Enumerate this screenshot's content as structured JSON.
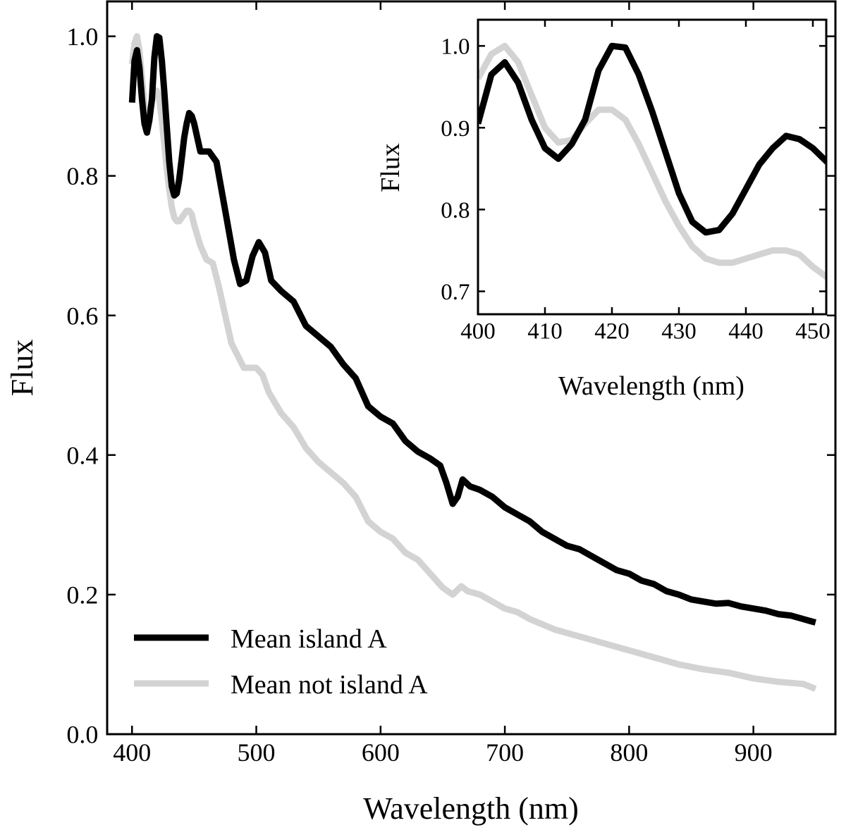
{
  "chart_data": [
    {
      "type": "line",
      "xlabel": "Wavelength (nm)",
      "ylabel": "Flux",
      "xlim": [
        380,
        966
      ],
      "ylim": [
        0,
        1.05
      ],
      "xticks": [
        400,
        500,
        600,
        700,
        800,
        900
      ],
      "yticks": [
        0.0,
        0.2,
        0.4,
        0.6,
        0.8,
        1.0
      ],
      "xtick_labels": [
        "400",
        "500",
        "600",
        "700",
        "800",
        "900"
      ],
      "ytick_labels": [
        "0.0",
        "0.2",
        "0.4",
        "0.6",
        "0.8",
        "1.0"
      ],
      "grid": false,
      "legend_position": "bottom-left",
      "series": [
        {
          "name": "Mean island A",
          "color": "#000000",
          "x": [
            400,
            402,
            404,
            406,
            408,
            410,
            412,
            414,
            416,
            418,
            420,
            422,
            424,
            426,
            428,
            430,
            432,
            434,
            436,
            438,
            440,
            442,
            444,
            446,
            448,
            450,
            455,
            462,
            468,
            475,
            482,
            487,
            492,
            497,
            502,
            507,
            512,
            520,
            530,
            540,
            550,
            560,
            570,
            580,
            590,
            600,
            610,
            620,
            630,
            640,
            648,
            653,
            658,
            662,
            666,
            672,
            680,
            690,
            700,
            710,
            720,
            730,
            740,
            750,
            760,
            770,
            780,
            790,
            800,
            810,
            820,
            830,
            840,
            850,
            860,
            870,
            880,
            890,
            900,
            910,
            920,
            930,
            940,
            950
          ],
          "y": [
            0.905,
            0.965,
            0.98,
            0.955,
            0.91,
            0.875,
            0.862,
            0.88,
            0.91,
            0.97,
            1.0,
            0.998,
            0.965,
            0.92,
            0.87,
            0.82,
            0.785,
            0.772,
            0.775,
            0.795,
            0.825,
            0.855,
            0.875,
            0.89,
            0.886,
            0.875,
            0.835,
            0.835,
            0.82,
            0.75,
            0.68,
            0.645,
            0.65,
            0.685,
            0.705,
            0.69,
            0.65,
            0.635,
            0.62,
            0.585,
            0.57,
            0.555,
            0.53,
            0.51,
            0.47,
            0.455,
            0.445,
            0.42,
            0.405,
            0.395,
            0.385,
            0.36,
            0.33,
            0.34,
            0.365,
            0.355,
            0.35,
            0.34,
            0.325,
            0.315,
            0.305,
            0.29,
            0.28,
            0.27,
            0.265,
            0.255,
            0.245,
            0.235,
            0.23,
            0.22,
            0.215,
            0.205,
            0.2,
            0.193,
            0.19,
            0.187,
            0.188,
            0.183,
            0.18,
            0.177,
            0.172,
            0.17,
            0.165,
            0.16
          ]
        },
        {
          "name": "Mean not island A",
          "color": "#d3d3d3",
          "x": [
            400,
            402,
            404,
            406,
            408,
            410,
            412,
            414,
            416,
            418,
            420,
            422,
            424,
            426,
            428,
            430,
            432,
            434,
            436,
            438,
            440,
            442,
            444,
            446,
            448,
            450,
            455,
            460,
            465,
            470,
            480,
            490,
            500,
            505,
            510,
            520,
            530,
            540,
            550,
            560,
            570,
            580,
            590,
            600,
            610,
            620,
            630,
            640,
            650,
            658,
            665,
            670,
            680,
            690,
            700,
            710,
            720,
            740,
            760,
            780,
            800,
            820,
            840,
            860,
            880,
            900,
            920,
            940,
            950
          ],
          "y": [
            0.96,
            0.99,
            1.0,
            0.98,
            0.94,
            0.9,
            0.882,
            0.885,
            0.905,
            0.922,
            0.922,
            0.91,
            0.88,
            0.845,
            0.81,
            0.78,
            0.755,
            0.74,
            0.735,
            0.735,
            0.74,
            0.745,
            0.75,
            0.75,
            0.745,
            0.73,
            0.7,
            0.68,
            0.675,
            0.64,
            0.56,
            0.525,
            0.525,
            0.515,
            0.49,
            0.46,
            0.44,
            0.41,
            0.39,
            0.375,
            0.36,
            0.34,
            0.305,
            0.29,
            0.28,
            0.26,
            0.25,
            0.23,
            0.21,
            0.2,
            0.212,
            0.205,
            0.2,
            0.19,
            0.18,
            0.175,
            0.165,
            0.15,
            0.14,
            0.13,
            0.12,
            0.11,
            0.1,
            0.093,
            0.088,
            0.08,
            0.075,
            0.072,
            0.065
          ]
        }
      ]
    },
    {
      "type": "line",
      "xlabel": "Wavelength (nm)",
      "ylabel": "Flux",
      "xlim": [
        400,
        452
      ],
      "ylim": [
        0.672,
        1.032
      ],
      "xticks": [
        400,
        410,
        420,
        430,
        440,
        450
      ],
      "yticks": [
        0.7,
        0.8,
        0.9,
        1.0
      ],
      "xtick_labels": [
        "400",
        "410",
        "420",
        "430",
        "440",
        "450"
      ],
      "ytick_labels": [
        "0.7",
        "0.8",
        "0.9",
        "1.0"
      ],
      "grid": false,
      "legend_position": "none",
      "inset_of": 0
    }
  ]
}
